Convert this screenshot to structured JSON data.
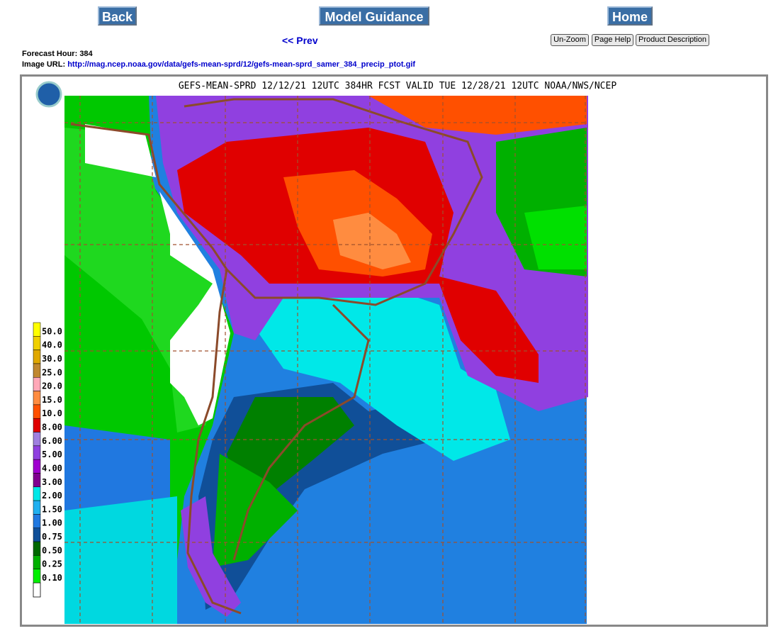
{
  "nav": {
    "back": "Back",
    "model_guidance": "Model Guidance",
    "home": "Home",
    "prev": "<< Prev",
    "un_zoom": "Un-Zoom",
    "page_help": "Page Help",
    "product_description": "Product Description"
  },
  "info": {
    "forecast_hour_label": "Forecast Hour:",
    "forecast_hour": 384,
    "image_url_label": "Image URL:",
    "image_url": "http://mag.ncep.noaa.gov/data/gefs-mean-sprd/12/gefs-mean-sprd_samer_384_precip_ptot.gif"
  },
  "map": {
    "title": "GEFS-MEAN-SPRD 12/12/21 12UTC 384HR FCST VALID TUE 12/28/21 12UTC NOAA/NWS/NCEP",
    "legend": [
      {
        "label": "50.0",
        "color": "#ffff00"
      },
      {
        "label": "40.0",
        "color": "#f0d000"
      },
      {
        "label": "30.0",
        "color": "#e0a800"
      },
      {
        "label": "25.0",
        "color": "#c08830"
      },
      {
        "label": "20.0",
        "color": "#ffa8b8"
      },
      {
        "label": "15.0",
        "color": "#ff8c40"
      },
      {
        "label": "10.0",
        "color": "#ff5000"
      },
      {
        "label": "8.00",
        "color": "#e00000"
      },
      {
        "label": "6.00",
        "color": "#a080e0"
      },
      {
        "label": "5.00",
        "color": "#9040e0"
      },
      {
        "label": "4.00",
        "color": "#a000d0"
      },
      {
        "label": "3.00",
        "color": "#800090"
      },
      {
        "label": "2.00",
        "color": "#00e8e8"
      },
      {
        "label": "1.50",
        "color": "#20b0f0"
      },
      {
        "label": "1.00",
        "color": "#2078e0"
      },
      {
        "label": "0.75",
        "color": "#104f98"
      },
      {
        "label": "0.50",
        "color": "#006800"
      },
      {
        "label": "0.25",
        "color": "#00b000"
      },
      {
        "label": "0.10",
        "color": "#00f000"
      }
    ]
  }
}
